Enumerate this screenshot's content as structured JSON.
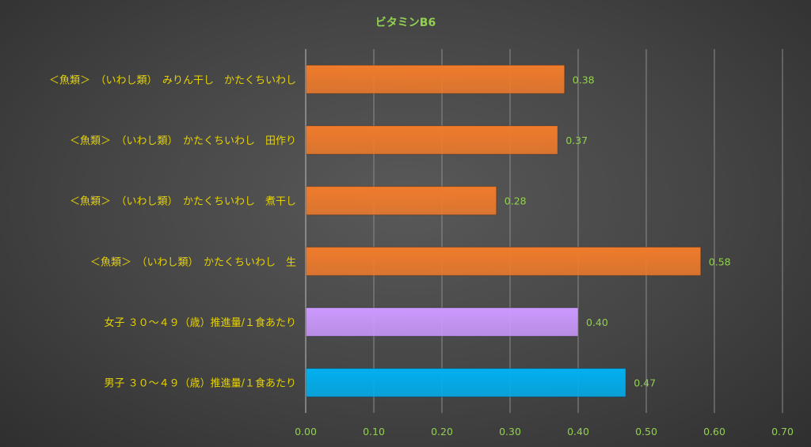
{
  "chart_data": {
    "type": "bar",
    "orientation": "horizontal",
    "title": "ビタミンB6",
    "categories": [
      "＜魚類＞　（いわし類）　みりん干し　かたくちいわし",
      "＜魚類＞　（いわし類）　かたくちいわし　田作り",
      "＜魚類＞　（いわし類）　かたくちいわし　煮干し",
      "＜魚類＞　（いわし類）　かたくちいわし　生",
      "女子 ３０～４９（歳）推進量/１食あたり",
      "男子 ３０～４９（歳）推進量/１食あたり"
    ],
    "values": [
      0.38,
      0.37,
      0.28,
      0.58,
      0.4,
      0.47
    ],
    "value_labels": [
      "0.38",
      "0.37",
      "0.28",
      "0.58",
      "0.40",
      "0.47"
    ],
    "bar_colors": [
      "#f07b2b",
      "#f07b2b",
      "#f07b2b",
      "#f07b2b",
      "#cc99ff",
      "#00b0f0"
    ],
    "xlim": [
      0,
      0.7
    ],
    "xticks": [
      0.0,
      0.1,
      0.2,
      0.3,
      0.4,
      0.5,
      0.6,
      0.7
    ],
    "xtick_labels": [
      "0.00",
      "0.10",
      "0.20",
      "0.30",
      "0.40",
      "0.50",
      "0.60",
      "0.70"
    ],
    "grid": "vertical",
    "legend": "none",
    "colors": {
      "title": "#92d050",
      "category_label": "#e6d200",
      "value_label": "#92d050",
      "tick_label": "#92d050",
      "gridline": "#8c8c8c",
      "axis_line": "#bfbfbf"
    }
  }
}
